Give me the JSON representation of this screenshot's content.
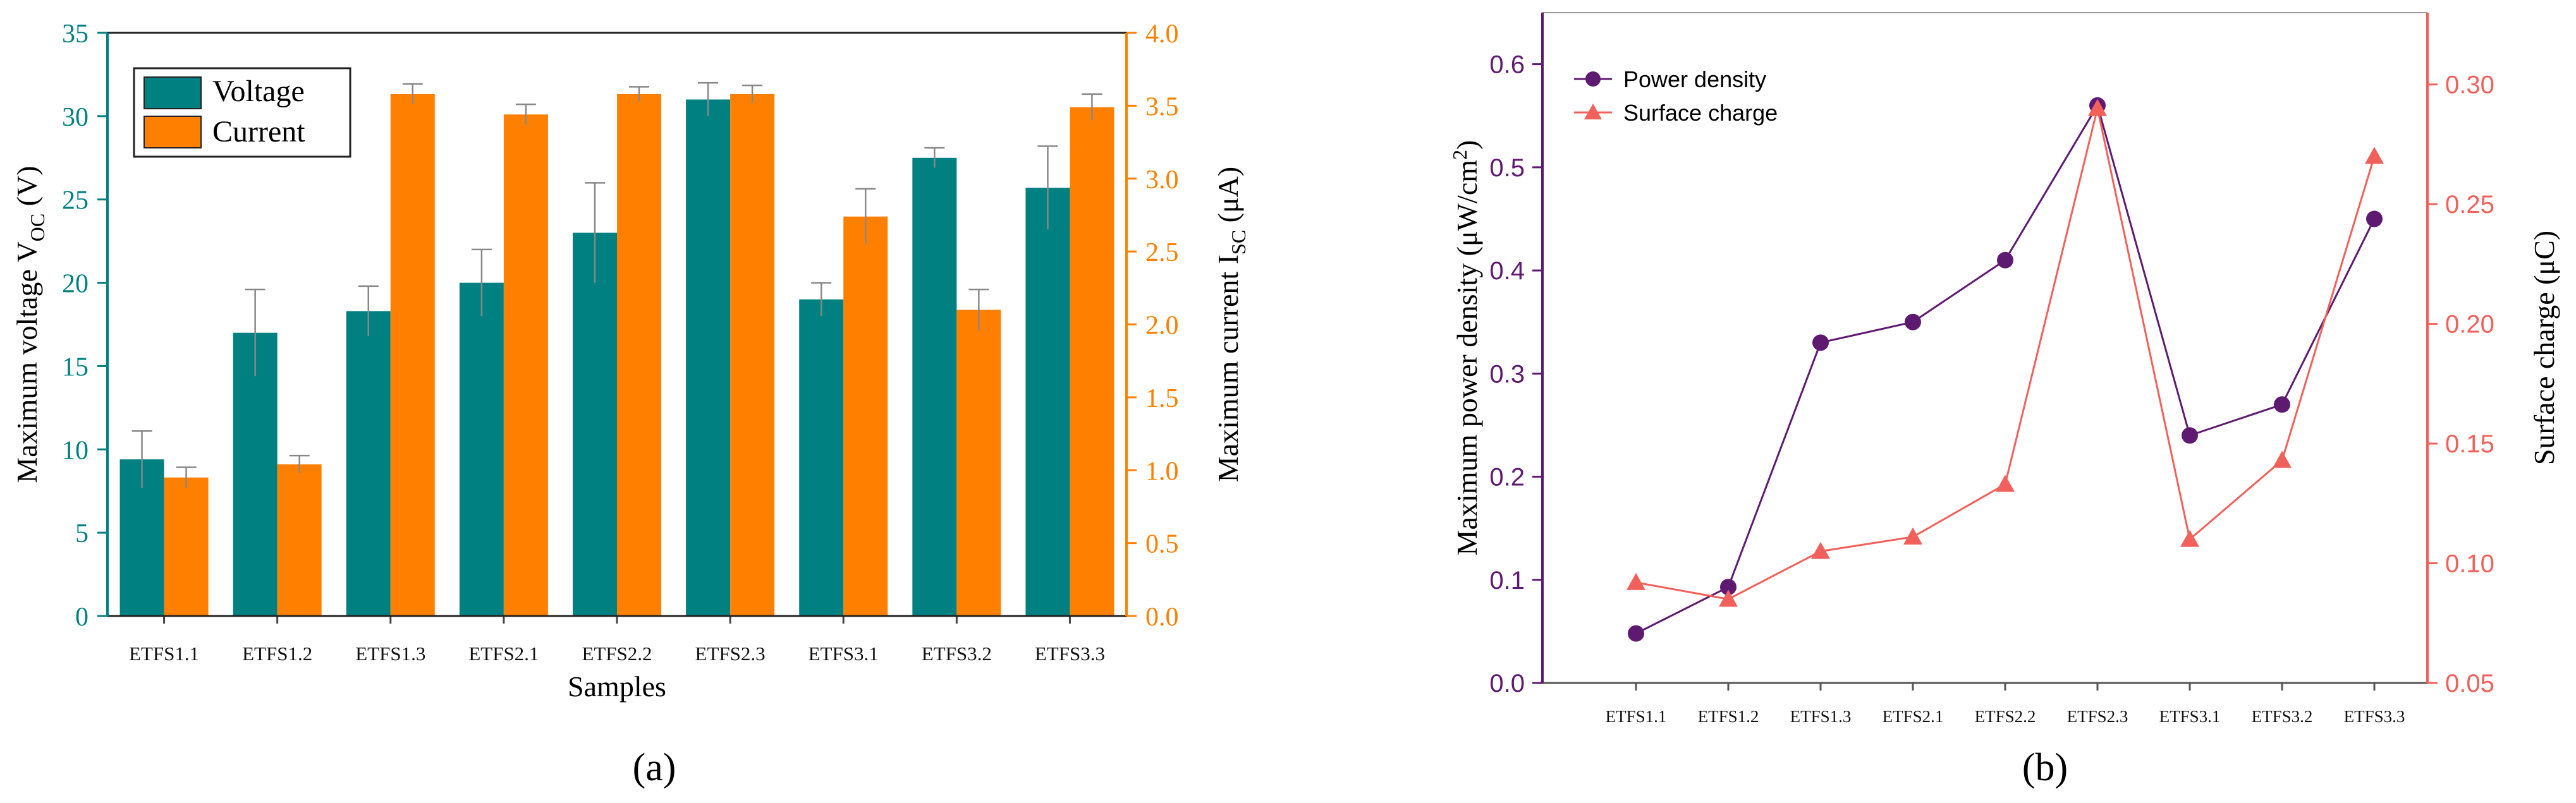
{
  "figure": {
    "panel_a_label": "(a)",
    "panel_b_label": "(b)"
  },
  "colors": {
    "voltage": "#008080",
    "current": "#FF8000",
    "power": "#5E1970",
    "surface": "#F2605B"
  },
  "chart_data": [
    {
      "type": "bar",
      "title": "",
      "categories": [
        "ETFS1.1",
        "ETFS1.2",
        "ETFS1.3",
        "ETFS2.1",
        "ETFS2.2",
        "ETFS2.3",
        "ETFS3.1",
        "ETFS3.2",
        "ETFS3.3"
      ],
      "xlabel": "Samples",
      "ylabel_left": {
        "main": "Maximum voltage V",
        "sub": "OC",
        "unit": " (V)"
      },
      "ylabel_right": {
        "main": "Maximum current I",
        "sub": "SC",
        "unit": " (μA)"
      },
      "ylim_left": [
        0,
        35
      ],
      "yticks_left": [
        0,
        5,
        10,
        15,
        20,
        25,
        30,
        35
      ],
      "ylim_right": [
        0,
        4.0
      ],
      "yticks_right": [
        0.0,
        0.5,
        1.0,
        1.5,
        2.0,
        2.5,
        3.0,
        3.5,
        4.0
      ],
      "legend_position": "top-left",
      "series": [
        {
          "name": "Voltage",
          "axis": "left",
          "values": [
            9.4,
            17.0,
            18.3,
            20.0,
            23.0,
            31.0,
            19.0,
            27.5,
            25.7
          ],
          "errors": [
            1.7,
            2.6,
            1.5,
            2.0,
            3.0,
            1.0,
            1.0,
            0.6,
            2.5
          ]
        },
        {
          "name": "Current",
          "axis": "right",
          "values": [
            0.95,
            1.04,
            3.58,
            3.44,
            3.58,
            3.58,
            2.74,
            2.1,
            3.49
          ],
          "errors": [
            0.07,
            0.06,
            0.07,
            0.07,
            0.05,
            0.06,
            0.19,
            0.14,
            0.09
          ]
        }
      ]
    },
    {
      "type": "line",
      "title": "",
      "categories": [
        "ETFS1.1",
        "ETFS1.2",
        "ETFS1.3",
        "ETFS2.1",
        "ETFS2.2",
        "ETFS2.3",
        "ETFS3.1",
        "ETFS3.2",
        "ETFS3.3"
      ],
      "xlabel": "",
      "ylabel_left": {
        "main": "Maximum power density (μW/cm",
        "sup": "2",
        "tail": ")"
      },
      "ylabel_right": "Surface charge (μC)",
      "ylim_left": [
        0.0,
        0.65
      ],
      "yticks_left": [
        "0.0",
        "0.1",
        "0.2",
        "0.3",
        "0.4",
        "0.5",
        "0.6"
      ],
      "ylim_right": [
        0.05,
        0.33
      ],
      "yticks_right": [
        "0.05",
        "0.10",
        "0.15",
        "0.20",
        "0.25",
        "0.30"
      ],
      "legend_position": "top-left",
      "series": [
        {
          "name": "Power density",
          "axis": "left",
          "marker": "circle",
          "values": [
            0.048,
            0.093,
            0.33,
            0.35,
            0.41,
            0.56,
            0.24,
            0.27,
            0.45
          ]
        },
        {
          "name": "Surface charge",
          "axis": "right",
          "marker": "triangle",
          "values": [
            0.092,
            0.085,
            0.105,
            0.111,
            0.133,
            0.29,
            0.11,
            0.143,
            0.27
          ]
        }
      ]
    }
  ]
}
